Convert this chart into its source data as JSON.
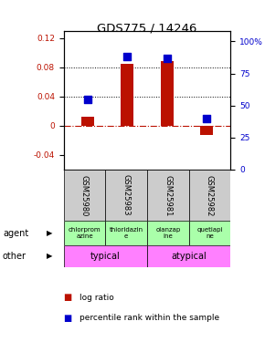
{
  "title": "GDS775 / 14246",
  "samples": [
    "GSM25980",
    "GSM25983",
    "GSM25981",
    "GSM25982"
  ],
  "log_ratios": [
    0.012,
    0.085,
    0.088,
    -0.012
  ],
  "percentile_ranks": [
    0.55,
    0.88,
    0.87,
    0.4
  ],
  "agents": [
    "chlorprom\nazine",
    "thioridazin\ne",
    "olanzap\nine",
    "quetiapi\nne"
  ],
  "agent_bg_colors": [
    "#aaffaa",
    "#aaffaa",
    "#aaffaa",
    "#aaffaa"
  ],
  "other_groups": [
    [
      "typical",
      2
    ],
    [
      "atypical",
      2
    ]
  ],
  "other_color": "#ff80ff",
  "ylim_left": [
    -0.06,
    0.13
  ],
  "ylim_right": [
    0.0,
    1.083
  ],
  "yticks_left": [
    -0.04,
    0.0,
    0.04,
    0.08,
    0.12
  ],
  "ytick_labels_left": [
    "-0.04",
    "0",
    "0.04",
    "0.08",
    "0.12"
  ],
  "yticks_right": [
    0.0,
    0.25,
    0.5,
    0.75,
    1.0
  ],
  "ytick_labels_right": [
    "0",
    "25",
    "50",
    "75",
    "100%"
  ],
  "bar_color": "#bb1100",
  "dot_color": "#0000cc",
  "zero_line_color": "#bb1100",
  "background_color": "#ffffff",
  "header_bg": "#cccccc",
  "legend_log_ratio": "log ratio",
  "legend_percentile": "percentile rank within the sample"
}
